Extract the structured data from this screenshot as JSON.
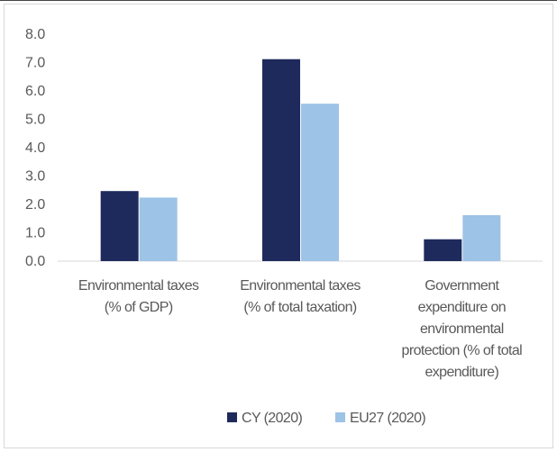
{
  "chart_data": {
    "type": "bar",
    "categories": [
      [
        "Environmental taxes",
        "(% of GDP)"
      ],
      [
        "Environmental taxes",
        "(% of total taxation)"
      ],
      [
        "Government",
        "expenditure on",
        "environmental",
        "protection (% of total",
        "expenditure)"
      ]
    ],
    "series": [
      {
        "name": "CY (2020)",
        "color": "#1f2a5c",
        "values": [
          2.47,
          7.12,
          0.77
        ]
      },
      {
        "name": "EU27 (2020)",
        "color": "#9dc3e6",
        "values": [
          2.24,
          5.55,
          1.62
        ]
      }
    ],
    "yticks": [
      "0.0",
      "1.0",
      "2.0",
      "3.0",
      "4.0",
      "5.0",
      "6.0",
      "7.0",
      "8.0"
    ],
    "ylim": [
      0,
      8
    ],
    "grid": false,
    "legend_position": "bottom"
  }
}
